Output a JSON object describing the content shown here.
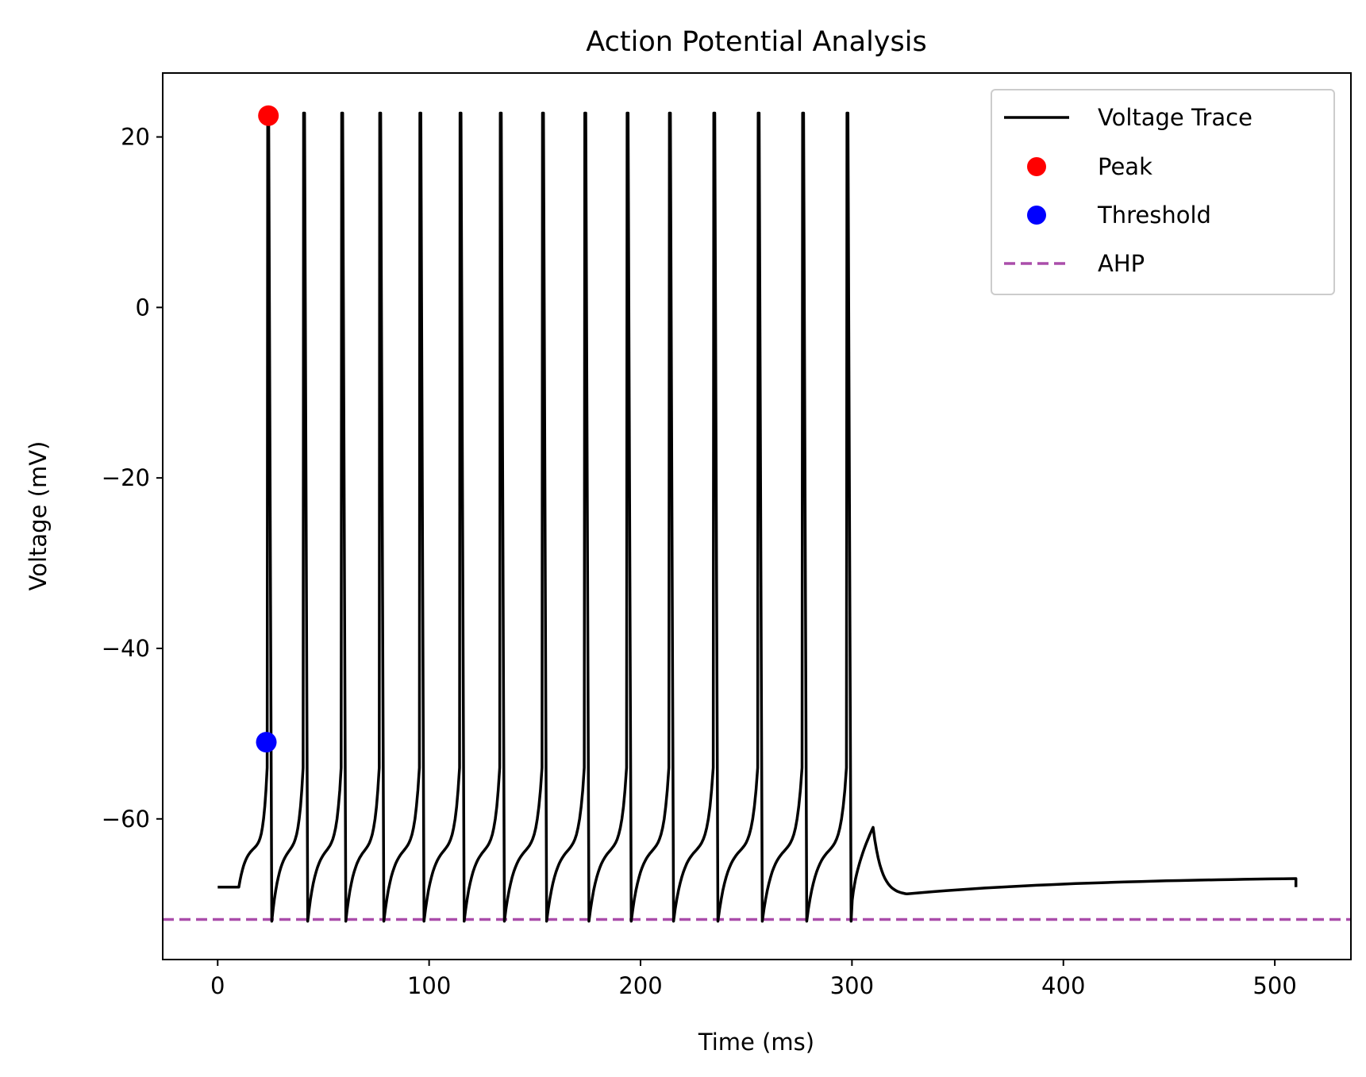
{
  "chart_data": {
    "type": "line",
    "title": "Action Potential Analysis",
    "xlabel": "Time (ms)",
    "ylabel": "Voltage (mV)",
    "xlim": [
      -26,
      536
    ],
    "ylim": [
      -76.5,
      27.5
    ],
    "xticks": [
      0,
      100,
      200,
      300,
      400,
      500
    ],
    "yticks": [
      20,
      0,
      -20,
      -40,
      -60
    ],
    "ytick_labels": [
      "20",
      "0",
      "−20",
      "−40",
      "−60"
    ],
    "grid": false,
    "legend_position": "top-right",
    "colors": {
      "trace": "#000000",
      "peak": "#ff0000",
      "threshold": "#0000ff",
      "ahp": "#aa4daa"
    },
    "trace": {
      "resting_potential": -68,
      "stimulus_start": 10,
      "stimulus_end": 300,
      "end_time": 510,
      "spike_peak": 22.8,
      "spike_trough": -72,
      "spike_times": [
        24,
        41,
        59,
        77,
        96,
        115,
        134,
        154,
        174,
        194,
        214,
        235,
        256,
        277,
        298
      ],
      "post_stimulus_bump": {
        "time": 310,
        "voltage": -61
      },
      "final_voltage": -68
    },
    "peak": {
      "time": 24,
      "voltage": 22.5
    },
    "threshold": {
      "time": 23,
      "voltage": -51
    },
    "ahp_level": -71.8,
    "legend": [
      {
        "label": "Voltage Trace",
        "kind": "line"
      },
      {
        "label": "Peak",
        "kind": "marker"
      },
      {
        "label": "Threshold",
        "kind": "marker"
      },
      {
        "label": "AHP",
        "kind": "dashed"
      }
    ]
  }
}
